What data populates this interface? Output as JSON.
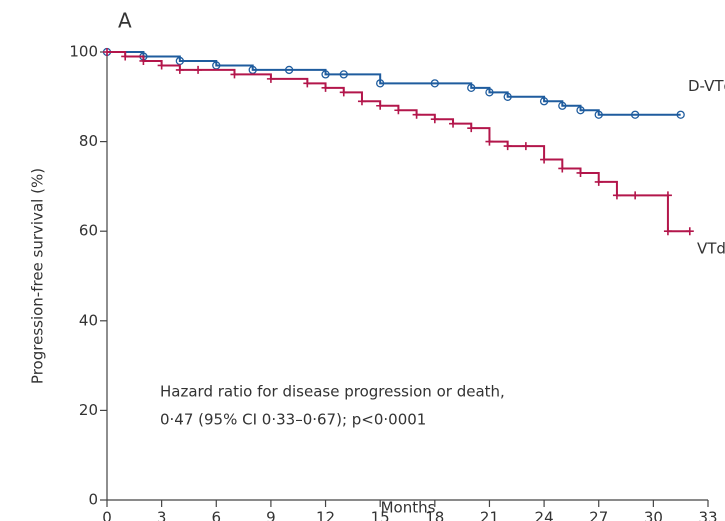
{
  "chart_data": {
    "type": "line",
    "step": true,
    "panel_label": "A",
    "x_label": "Months",
    "y_label": "Progression-free survival (%)",
    "annotation": [
      "Hazard ratio for disease progression or death,",
      "0·47 (95% CI 0·33–0·67); p<0·0001"
    ],
    "xlim": [
      0,
      33
    ],
    "xticks": [
      0,
      3,
      6,
      9,
      12,
      15,
      18,
      21,
      24,
      27,
      30,
      33
    ],
    "ylim": [
      0,
      100
    ],
    "yticks": [
      0,
      20,
      40,
      60,
      80,
      100
    ],
    "series": [
      {
        "name": "D-VTd",
        "color": "#1f5c9e",
        "marker": "circle",
        "x": [
          0,
          2,
          4,
          6,
          8,
          10,
          12,
          13,
          15,
          18,
          20,
          21,
          22,
          24,
          25,
          26,
          27,
          29,
          31.5
        ],
        "values": [
          100,
          99,
          98,
          97,
          96,
          96,
          95,
          95,
          93,
          93,
          92,
          91,
          90,
          89,
          88,
          87,
          86,
          86,
          86
        ]
      },
      {
        "name": "VTd",
        "color": "#b3164b",
        "marker": "plus",
        "x": [
          0,
          1,
          2,
          3,
          4,
          5,
          7,
          9,
          11,
          12,
          13,
          14,
          15,
          16,
          17,
          18,
          19,
          20,
          21,
          22,
          23,
          24,
          25,
          26,
          27,
          28,
          29,
          30.8,
          30.8,
          32
        ],
        "values": [
          100,
          99,
          98,
          97,
          96,
          96,
          95,
          94,
          93,
          92,
          91,
          89,
          88,
          87,
          86,
          85,
          84,
          83,
          80,
          79,
          79,
          76,
          74,
          73,
          71,
          68,
          68,
          68,
          60,
          60
        ]
      }
    ]
  }
}
